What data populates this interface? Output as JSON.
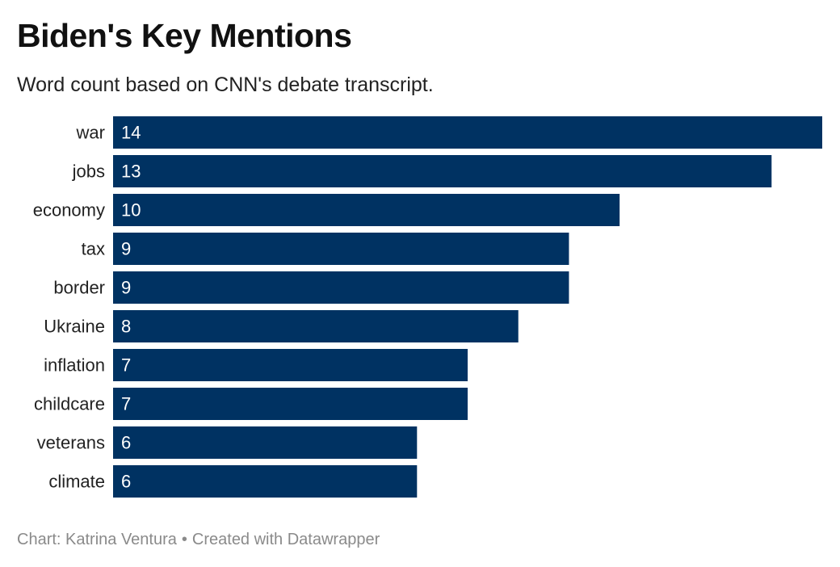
{
  "chart_data": {
    "type": "bar",
    "orientation": "horizontal",
    "title": "Biden's Key Mentions",
    "subtitle": "Word count based on CNN's debate transcript.",
    "categories": [
      "war",
      "jobs",
      "economy",
      "tax",
      "border",
      "Ukraine",
      "inflation",
      "childcare",
      "veterans",
      "climate"
    ],
    "values": [
      14,
      13,
      10,
      9,
      9,
      8,
      7,
      7,
      6,
      6
    ],
    "xlim": [
      0,
      14
    ],
    "grid": false,
    "data_labels": "inside-start",
    "colors": {
      "bar": "#003262"
    }
  },
  "footer": {
    "credit": "Chart: Katrina Ventura",
    "separator": "•",
    "tool": "Created with Datawrapper"
  }
}
